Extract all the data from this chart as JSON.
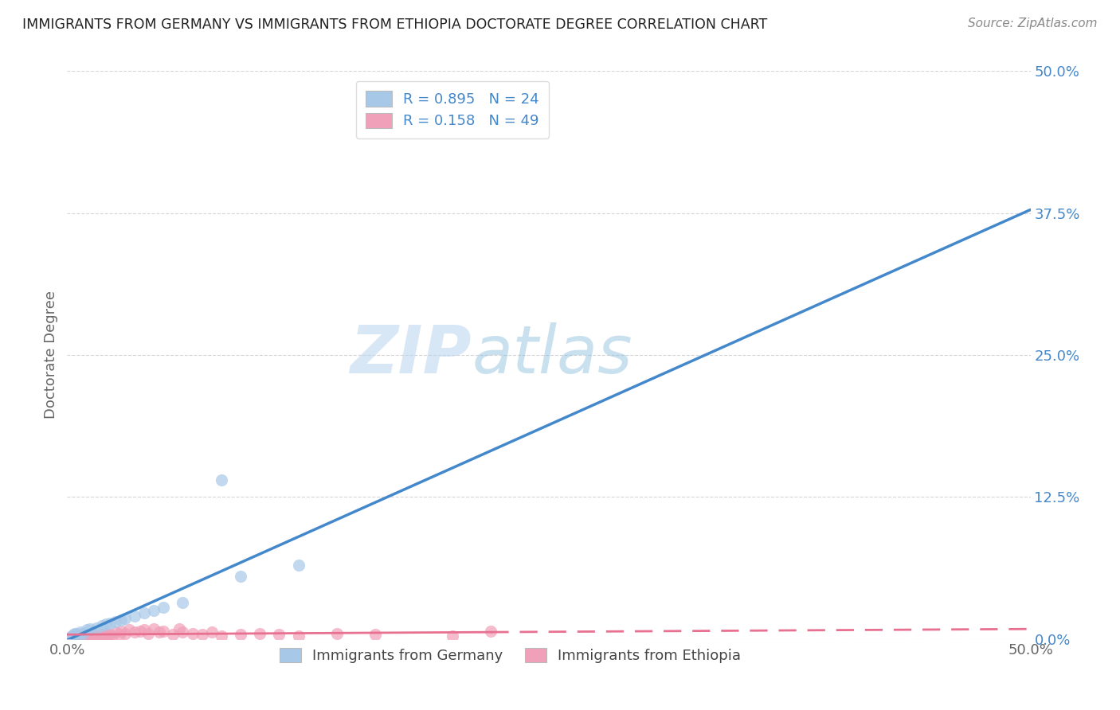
{
  "title": "IMMIGRANTS FROM GERMANY VS IMMIGRANTS FROM ETHIOPIA DOCTORATE DEGREE CORRELATION CHART",
  "source": "Source: ZipAtlas.com",
  "ylabel": "Doctorate Degree",
  "xlim": [
    0.0,
    0.5
  ],
  "ylim": [
    0.0,
    0.5
  ],
  "xtick_positions": [
    0.0,
    0.5
  ],
  "xtick_labels": [
    "0.0%",
    "50.0%"
  ],
  "ytick_values": [
    0.0,
    0.125,
    0.25,
    0.375,
    0.5
  ],
  "ytick_labels": [
    "0.0%",
    "12.5%",
    "25.0%",
    "37.5%",
    "50.0%"
  ],
  "watermark_zip": "ZIP",
  "watermark_atlas": "atlas",
  "germany_color": "#a8c8e8",
  "ethiopia_color": "#f0a0b8",
  "germany_line_color": "#4488cc",
  "ethiopia_line_color": "#e87090",
  "R_germany": 0.895,
  "N_germany": 24,
  "R_ethiopia": 0.158,
  "N_ethiopia": 49,
  "germany_scatter": [
    [
      0.002,
      0.002
    ],
    [
      0.003,
      0.004
    ],
    [
      0.004,
      0.005
    ],
    [
      0.005,
      0.005
    ],
    [
      0.006,
      0.004
    ],
    [
      0.007,
      0.006
    ],
    [
      0.008,
      0.005
    ],
    [
      0.01,
      0.008
    ],
    [
      0.012,
      0.009
    ],
    [
      0.015,
      0.01
    ],
    [
      0.018,
      0.012
    ],
    [
      0.02,
      0.013
    ],
    [
      0.022,
      0.014
    ],
    [
      0.025,
      0.015
    ],
    [
      0.028,
      0.017
    ],
    [
      0.03,
      0.018
    ],
    [
      0.035,
      0.02
    ],
    [
      0.04,
      0.023
    ],
    [
      0.045,
      0.025
    ],
    [
      0.05,
      0.028
    ],
    [
      0.06,
      0.032
    ],
    [
      0.08,
      0.14
    ],
    [
      0.09,
      0.055
    ],
    [
      0.12,
      0.065
    ]
  ],
  "ethiopia_scatter": [
    [
      0.002,
      0.002
    ],
    [
      0.003,
      0.002
    ],
    [
      0.004,
      0.003
    ],
    [
      0.005,
      0.002
    ],
    [
      0.006,
      0.003
    ],
    [
      0.007,
      0.002
    ],
    [
      0.008,
      0.003
    ],
    [
      0.009,
      0.002
    ],
    [
      0.01,
      0.003
    ],
    [
      0.011,
      0.002
    ],
    [
      0.012,
      0.004
    ],
    [
      0.013,
      0.002
    ],
    [
      0.014,
      0.003
    ],
    [
      0.015,
      0.004
    ],
    [
      0.016,
      0.003
    ],
    [
      0.017,
      0.002
    ],
    [
      0.018,
      0.004
    ],
    [
      0.019,
      0.003
    ],
    [
      0.02,
      0.005
    ],
    [
      0.021,
      0.003
    ],
    [
      0.022,
      0.004
    ],
    [
      0.023,
      0.003
    ],
    [
      0.025,
      0.006
    ],
    [
      0.027,
      0.004
    ],
    [
      0.028,
      0.007
    ],
    [
      0.03,
      0.005
    ],
    [
      0.032,
      0.008
    ],
    [
      0.035,
      0.006
    ],
    [
      0.038,
      0.007
    ],
    [
      0.04,
      0.008
    ],
    [
      0.042,
      0.005
    ],
    [
      0.045,
      0.009
    ],
    [
      0.048,
      0.006
    ],
    [
      0.05,
      0.007
    ],
    [
      0.055,
      0.004
    ],
    [
      0.058,
      0.009
    ],
    [
      0.06,
      0.006
    ],
    [
      0.065,
      0.005
    ],
    [
      0.07,
      0.004
    ],
    [
      0.075,
      0.006
    ],
    [
      0.08,
      0.003
    ],
    [
      0.09,
      0.004
    ],
    [
      0.1,
      0.005
    ],
    [
      0.11,
      0.004
    ],
    [
      0.12,
      0.003
    ],
    [
      0.14,
      0.005
    ],
    [
      0.16,
      0.004
    ],
    [
      0.2,
      0.003
    ],
    [
      0.22,
      0.007
    ]
  ]
}
